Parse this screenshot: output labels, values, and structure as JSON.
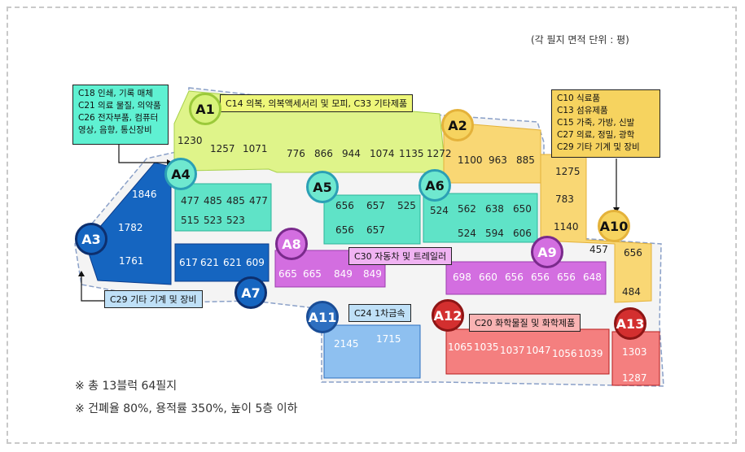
{
  "area_unit_note": "(각 필지 면적 단위 : 평)",
  "footer": {
    "line1": "※ 총 13블럭 64필지",
    "line2": "※ 건폐율 80%, 용적률 350%, 높이 5층 이하"
  },
  "blocks": [
    {
      "id": "A1",
      "label": "A1",
      "color": "#dff48a",
      "border": "#9bc93a",
      "lots": [
        "1230",
        "1257",
        "1071"
      ],
      "zone": "C14 의복, 의복액세서리 및 모피, C33 기타제품",
      "zone_color": "#eef77a"
    },
    {
      "id": "A2",
      "label": "A2",
      "color": "#f9d774",
      "border": "#e4b23a",
      "lots": [
        "776",
        "866",
        "944",
        "1074",
        "1135",
        "1272",
        "1100",
        "963",
        "885"
      ]
    },
    {
      "id": "A3",
      "label": "A3",
      "color": "#1565c0",
      "border": "#0d3c8a",
      "lots": [
        "1846",
        "1782",
        "1761"
      ],
      "zone": "C29 기타  기계 및 장비",
      "zone_color": "#bfe0f7"
    },
    {
      "id": "A4",
      "label": "A4",
      "color": "#5fe3c7",
      "border": "#2bb59a",
      "lots": [
        "477",
        "485",
        "485",
        "477",
        "515",
        "523",
        "523"
      ],
      "zone": "C18 인쇄, 기록 매체 / C21 의료 물질, 의약품 / C26 전자부품, 컴퓨터 / 영상, 음향, 통신장비",
      "zone_color": "#5ff1d2"
    },
    {
      "id": "A5",
      "label": "A5",
      "color": "#5fe3c7",
      "border": "#2bb59a",
      "lots": [
        "656",
        "657",
        "525",
        "656",
        "657"
      ]
    },
    {
      "id": "A6",
      "label": "A6",
      "color": "#5fe3c7",
      "border": "#2bb59a",
      "lots": [
        "524",
        "562",
        "638",
        "650",
        "524",
        "594",
        "606"
      ]
    },
    {
      "id": "A7",
      "label": "A7",
      "color": "#1565c0",
      "border": "#0d3c8a",
      "lots": [
        "617",
        "621",
        "621",
        "609"
      ]
    },
    {
      "id": "A8",
      "label": "A8",
      "color": "#d36ee0",
      "border": "#9b3cae",
      "lots": [
        "665",
        "665",
        "849",
        "849"
      ],
      "zone": "C30 자동차 및 트레일러",
      "zone_color": "#f0b3f2"
    },
    {
      "id": "A9",
      "label": "A9",
      "color": "#d36ee0",
      "border": "#9b3cae",
      "lots": [
        "698",
        "660",
        "656",
        "656",
        "656",
        "648"
      ]
    },
    {
      "id": "A10",
      "label": "A10",
      "color": "#f9d774",
      "border": "#e4b23a",
      "lots": [
        "1275",
        "783",
        "1140",
        "457",
        "656",
        "484"
      ],
      "zone": "C10 식료품 / C13 섬유제품 / C15 가죽, 가방, 신발 / C27 의료, 정밀, 광학 / C29 기타 기계 및 장비",
      "zone_color": "#f6d35f"
    },
    {
      "id": "A11",
      "label": "A11",
      "color": "#8ec0f0",
      "border": "#2d6fc0",
      "lots": [
        "2145",
        "1715"
      ],
      "zone": "C24 1차금속",
      "zone_color": "#bfe0f7"
    },
    {
      "id": "A12",
      "label": "A12",
      "color": "#f47f7f",
      "border": "#b81c1c",
      "lots": [
        "1065",
        "1035",
        "1037",
        "1047",
        "1056",
        "1039"
      ],
      "zone": "C20 화학물질 및 화학제품",
      "zone_color": "#f9b3b3"
    },
    {
      "id": "A13",
      "label": "A13",
      "color": "#f47f7f",
      "border": "#b81c1c",
      "lots": [
        "1303",
        "1287"
      ]
    }
  ],
  "boxes": {
    "a4_lines": [
      "C18 인쇄, 기록 매체",
      "C21 의료 물질, 의약품",
      "C26 전자부품, 컴퓨터",
      "영상, 음향, 통신장비"
    ],
    "a10_lines": [
      "C10 식료품",
      "C13 섬유제품",
      "C15 가죽, 가방, 신발",
      "C27 의료, 정밀, 광학",
      "C29 기타 기계 및 장비"
    ]
  }
}
